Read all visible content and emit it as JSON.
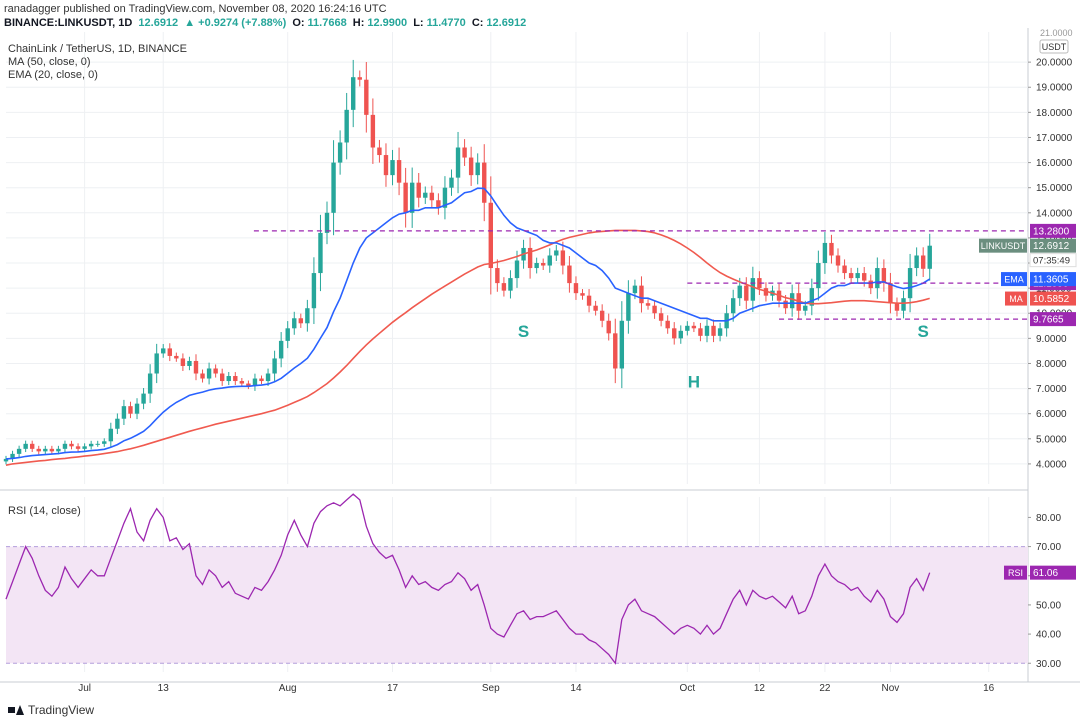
{
  "header": {
    "published": "ranadagger published on TradingView.com, November 08, 2020 16:24:16 UTC",
    "symbol": "BINANCE:LINKUSDT, 1D",
    "last": "12.6912",
    "change": "▲ +0.9274 (+7.88%)",
    "o_label": "O:",
    "o": "11.7668",
    "h_label": "H:",
    "h": "12.9900",
    "l_label": "L:",
    "l": "11.4770",
    "c_label": "C:",
    "c": "12.6912"
  },
  "legend": {
    "title": "ChainLink / TetherUS, 1D, BINANCE",
    "ma": "MA (50, close, 0)",
    "ema": "EMA (20, close, 0)",
    "rsi": "RSI (14, close)"
  },
  "footer": {
    "brand": "TradingView"
  },
  "colors": {
    "up": "#26a69a",
    "down": "#ef5350",
    "ema": "#2962ff",
    "ma": "#f05a4f",
    "rsi": "#9c27b0",
    "rsi_band": "#f3e5f5",
    "level": "#9c27b0",
    "annot": "#26a69a",
    "symbol_tag": "#6b8e7f"
  },
  "chart_data": [
    {
      "type": "candlestick",
      "title": "ChainLink / TetherUS, 1D, BINANCE",
      "currency": "USDT",
      "ylim": [
        3.2,
        21.2
      ],
      "yticks": [
        4,
        5,
        6,
        7,
        8,
        9,
        10,
        11,
        12,
        13,
        14,
        15,
        16,
        17,
        18,
        19,
        20
      ],
      "ytick_labels": [
        "4.0000",
        "5.0000",
        "6.0000",
        "7.0000",
        "8.0000",
        "9.0000",
        "10.0000",
        "11.0000",
        "12.0000",
        "13.0000",
        "14.0000",
        "15.0000",
        "16.0000",
        "17.0000",
        "18.0000",
        "19.0000",
        "20.0000"
      ],
      "xlim": [
        "2020-06-19",
        "2020-11-22"
      ],
      "xticks": [
        {
          "date": "2020-07-01",
          "label": "Jul"
        },
        {
          "date": "2020-07-13",
          "label": "13"
        },
        {
          "date": "2020-08-01",
          "label": "Aug"
        },
        {
          "date": "2020-08-17",
          "label": "17"
        },
        {
          "date": "2020-09-01",
          "label": "Sep"
        },
        {
          "date": "2020-09-14",
          "label": "14"
        },
        {
          "date": "2020-10-01",
          "label": "Oct"
        },
        {
          "date": "2020-10-12",
          "label": "12"
        },
        {
          "date": "2020-10-22",
          "label": "22"
        },
        {
          "date": "2020-11-01",
          "label": "Nov"
        },
        {
          "date": "2020-11-16",
          "label": "16"
        }
      ],
      "start_date": "2020-06-19",
      "closes": [
        4.2,
        4.4,
        4.6,
        4.8,
        4.6,
        4.5,
        4.6,
        4.5,
        4.6,
        4.8,
        4.7,
        4.6,
        4.7,
        4.8,
        4.8,
        4.9,
        5.4,
        5.8,
        6.3,
        6.0,
        6.4,
        6.8,
        7.6,
        8.4,
        8.6,
        8.3,
        8.2,
        7.9,
        8.1,
        7.6,
        7.4,
        7.8,
        7.6,
        7.3,
        7.5,
        7.3,
        7.2,
        7.1,
        7.4,
        7.3,
        7.6,
        8.2,
        8.9,
        9.4,
        9.8,
        9.6,
        10.2,
        11.6,
        13.2,
        14.0,
        16.0,
        16.8,
        18.1,
        19.4,
        19.3,
        17.9,
        16.6,
        16.3,
        15.5,
        16.1,
        15.2,
        14.0,
        15.2,
        14.6,
        14.8,
        14.5,
        14.2,
        15.0,
        15.4,
        16.6,
        16.2,
        15.5,
        16.0,
        14.4,
        11.8,
        11.2,
        10.9,
        11.4,
        12.1,
        12.6,
        11.8,
        12.0,
        11.9,
        12.3,
        12.5,
        11.9,
        11.2,
        10.8,
        10.7,
        10.3,
        10.1,
        9.7,
        9.2,
        7.8,
        9.7,
        10.8,
        11.1,
        10.4,
        10.3,
        10.0,
        9.7,
        9.4,
        9.0,
        9.3,
        9.5,
        9.4,
        9.1,
        9.5,
        9.1,
        9.4,
        10.0,
        10.6,
        11.1,
        10.5,
        11.4,
        11.0,
        10.7,
        10.9,
        10.5,
        10.2,
        10.8,
        10.1,
        10.3,
        11.0,
        12.0,
        12.8,
        12.3,
        11.9,
        11.6,
        11.4,
        11.6,
        11.3,
        11.0,
        11.8,
        11.2,
        10.4,
        10.1,
        10.6,
        11.8,
        12.3,
        11.77,
        12.69
      ],
      "ema20": [
        4.2,
        4.22,
        4.25,
        4.3,
        4.33,
        4.35,
        4.37,
        4.39,
        4.41,
        4.45,
        4.47,
        4.48,
        4.5,
        4.53,
        4.55,
        4.58,
        4.66,
        4.77,
        4.92,
        5.02,
        5.15,
        5.3,
        5.52,
        5.8,
        6.06,
        6.27,
        6.45,
        6.59,
        6.73,
        6.8,
        6.86,
        6.94,
        6.99,
        7.02,
        7.06,
        7.08,
        7.09,
        7.09,
        7.12,
        7.14,
        7.18,
        7.27,
        7.41,
        7.61,
        7.82,
        8.0,
        8.21,
        8.57,
        9.01,
        9.43,
        10.06,
        10.6,
        11.3,
        12.0,
        12.6,
        13.0,
        13.2,
        13.4,
        13.6,
        13.8,
        13.95,
        14.0,
        14.1,
        14.1,
        14.2,
        14.2,
        14.2,
        14.3,
        14.4,
        14.6,
        14.8,
        14.85,
        14.98,
        14.97,
        14.67,
        14.28,
        13.9,
        13.6,
        13.4,
        13.3,
        13.2,
        13.1,
        12.9,
        12.8,
        12.8,
        12.7,
        12.6,
        12.4,
        12.2,
        12.0,
        11.9,
        11.7,
        11.4,
        11.0,
        10.9,
        10.8,
        10.7,
        10.6,
        10.6,
        10.5,
        10.4,
        10.3,
        10.2,
        10.1,
        10.0,
        9.9,
        9.8,
        9.8,
        9.7,
        9.7,
        9.7,
        9.8,
        10.0,
        10.1,
        10.2,
        10.3,
        10.35,
        10.4,
        10.4,
        10.4,
        10.4,
        10.4,
        10.4,
        10.5,
        10.6,
        10.8,
        11.0,
        11.1,
        11.1,
        11.2,
        11.2,
        11.2,
        11.2,
        11.25,
        11.25,
        11.15,
        11.05,
        10.98,
        11.02,
        11.1,
        11.2,
        11.36
      ],
      "ma50": [
        3.95,
        4.0,
        4.03,
        4.06,
        4.09,
        4.12,
        4.14,
        4.17,
        4.2,
        4.22,
        4.25,
        4.28,
        4.31,
        4.34,
        4.37,
        4.41,
        4.45,
        4.49,
        4.55,
        4.6,
        4.67,
        4.74,
        4.82,
        4.9,
        4.98,
        5.06,
        5.14,
        5.22,
        5.3,
        5.37,
        5.44,
        5.51,
        5.58,
        5.64,
        5.7,
        5.76,
        5.82,
        5.88,
        5.94,
        6.0,
        6.07,
        6.14,
        6.24,
        6.34,
        6.45,
        6.56,
        6.68,
        6.84,
        7.02,
        7.2,
        7.42,
        7.66,
        7.92,
        8.2,
        8.48,
        8.74,
        8.98,
        9.2,
        9.42,
        9.64,
        9.84,
        10.02,
        10.22,
        10.4,
        10.58,
        10.76,
        10.92,
        11.08,
        11.24,
        11.4,
        11.56,
        11.7,
        11.84,
        11.94,
        11.98,
        12.04,
        12.1,
        12.18,
        12.26,
        12.36,
        12.44,
        12.52,
        12.62,
        12.72,
        12.84,
        12.94,
        13.02,
        13.08,
        13.14,
        13.2,
        13.24,
        13.26,
        13.28,
        13.3,
        13.3,
        13.3,
        13.3,
        13.28,
        13.25,
        13.2,
        13.12,
        13.02,
        12.9,
        12.76,
        12.6,
        12.42,
        12.22,
        12.0,
        11.8,
        11.62,
        11.48,
        11.36,
        11.25,
        11.15,
        11.05,
        10.95,
        10.88,
        10.8,
        10.72,
        10.62,
        10.56,
        10.48,
        10.4,
        10.38,
        10.38,
        10.4,
        10.42,
        10.45,
        10.48,
        10.5,
        10.5,
        10.5,
        10.48,
        10.46,
        10.44,
        10.42,
        10.4,
        10.4,
        10.42,
        10.46,
        10.52,
        10.59
      ],
      "levels": [
        {
          "value": 13.28,
          "label": "13.2800",
          "color": "#9c27b0",
          "style": "dashed"
        },
        {
          "value": 11.199,
          "label": "11.1990",
          "color": "#9c27b0",
          "style": "dashed"
        },
        {
          "value": 9.7665,
          "label": "9.7665",
          "color": "#9c27b0",
          "style": "dashed"
        }
      ],
      "price_tags": [
        {
          "name": "LINKUSDT",
          "value": "12.6912",
          "sub": "07:35:49"
        },
        {
          "name": "EMA",
          "value": "11.3605"
        },
        {
          "name": "MA",
          "value": "10.5852"
        }
      ],
      "annotations": [
        {
          "text": "S",
          "date": "2020-09-06",
          "value": 9.05
        },
        {
          "text": "H",
          "date": "2020-10-02",
          "value": 7.05
        },
        {
          "text": "S",
          "date": "2020-11-06",
          "value": 9.05
        }
      ]
    },
    {
      "type": "line",
      "title": "RSI (14, close)",
      "ylim": [
        27,
        87
      ],
      "yticks": [
        30,
        40,
        50,
        60,
        70,
        80
      ],
      "ytick_labels": [
        "30.00",
        "40.00",
        "50.00",
        "60.00",
        "70.00",
        "80.00"
      ],
      "band": [
        30,
        70
      ],
      "last_tag": {
        "name": "RSI",
        "value": "61.06"
      },
      "series": [
        {
          "values": [
            52,
            58,
            64,
            70,
            66,
            60,
            55,
            53,
            56,
            63,
            59,
            56,
            59,
            62,
            60,
            60,
            66,
            72,
            78,
            83,
            75,
            72,
            79,
            83,
            80,
            72,
            73,
            69,
            71,
            60,
            57,
            62,
            60,
            56,
            58,
            54,
            53,
            52,
            56,
            55,
            58,
            62,
            67,
            74,
            79,
            74,
            70,
            78,
            82,
            84,
            85,
            84,
            86,
            88,
            86,
            77,
            71,
            68,
            66,
            67,
            62,
            56,
            60,
            57,
            58,
            56,
            55,
            57,
            58,
            61,
            59,
            55,
            57,
            50,
            42,
            40,
            39,
            43,
            47,
            48,
            45,
            46,
            46,
            47,
            48,
            45,
            42,
            40,
            40,
            38,
            37,
            35,
            33,
            30,
            45,
            50,
            52,
            48,
            47,
            46,
            44,
            42,
            40,
            42,
            43,
            42,
            40,
            43,
            40,
            42,
            47,
            52,
            55,
            50,
            55,
            53,
            52,
            53,
            51,
            49,
            53,
            47,
            48,
            53,
            60,
            64,
            60,
            58,
            57,
            55,
            56,
            53,
            51,
            55,
            52,
            46,
            44,
            47,
            56,
            59,
            55,
            61.06
          ]
        }
      ]
    }
  ]
}
